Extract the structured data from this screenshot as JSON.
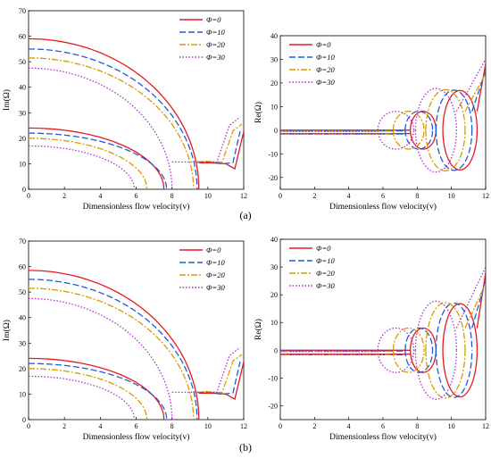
{
  "figure": {
    "panel_labels": [
      "(a)",
      "(b)"
    ]
  },
  "chart_data": [
    {
      "id": "a-left",
      "type": "line",
      "xlabel": "Dimensionless flow velocity(v)",
      "ylabel": "Im(Ω)",
      "xlim": [
        0,
        12
      ],
      "ylim": [
        0,
        70
      ],
      "xticks": [
        0,
        2,
        4,
        6,
        8,
        10,
        12
      ],
      "yticks": [
        0,
        10,
        20,
        30,
        40,
        50,
        60,
        70
      ],
      "legend": "top-right",
      "grid": false,
      "series": [
        {
          "name": "Φ=0",
          "color": "#e8191e",
          "dash": "solid",
          "upper": {
            "y0": 59,
            "xc": 9.5
          },
          "lower": {
            "y0": 24,
            "xc": 7.55
          },
          "right": [
            [
              9.5,
              10.4
            ],
            [
              10.2,
              10.4
            ],
            [
              11.0,
              10.0
            ],
            [
              11.5,
              8.0
            ],
            [
              12.0,
              22.6
            ]
          ]
        },
        {
          "name": "Φ=10",
          "color": "#1f5bd8",
          "dash": "7,3",
          "upper": {
            "y0": 55,
            "xc": 9.4
          },
          "lower": {
            "y0": 22,
            "xc": 7.7
          },
          "right": [
            [
              9.4,
              10.6
            ],
            [
              10.0,
              10.8
            ],
            [
              10.8,
              9.9
            ],
            [
              11.4,
              10.5
            ],
            [
              11.8,
              22.8
            ]
          ]
        },
        {
          "name": "Φ=20",
          "color": "#d99a00",
          "dash": "7,2,2,2",
          "upper": {
            "y0": 51.5,
            "xc": 9.2
          },
          "lower": {
            "y0": 20,
            "xc": 6.6
          },
          "right": [
            [
              9.2,
              10.7
            ],
            [
              9.9,
              11.0
            ],
            [
              10.8,
              10.6
            ],
            [
              11.4,
              23
            ],
            [
              11.9,
              25.5
            ]
          ]
        },
        {
          "name": "Φ=30",
          "color": "#b02bd0",
          "dash": "1.5,2",
          "upper": {
            "y0": 47.5,
            "xc": 8.0
          },
          "lower": {
            "y0": 17,
            "xc": 5.9
          },
          "right": [
            [
              8.0,
              10.7
            ],
            [
              9.0,
              10.7
            ],
            [
              10.5,
              10.7
            ],
            [
              11.2,
              25
            ],
            [
              11.8,
              28.3
            ]
          ]
        }
      ]
    },
    {
      "id": "a-right",
      "type": "line",
      "xlabel": "Dimensionless flow velocity(v)",
      "ylabel": "Re(Ω)",
      "xlim": [
        0,
        12
      ],
      "ylim": [
        -25,
        40
      ],
      "xticks": [
        0,
        2,
        4,
        6,
        8,
        10,
        12
      ],
      "yticks": [
        -20,
        -10,
        0,
        10,
        20,
        30,
        40
      ],
      "legend": "top-left",
      "grid": false,
      "series": [
        {
          "name": "Φ=0",
          "color": "#e8191e",
          "dash": "solid",
          "base": [
            -1.4,
            0.0
          ],
          "split": 7.6,
          "loop": [
            7.6,
            9.1,
            8.0
          ],
          "big": [
            9.5,
            11.5,
            16.8
          ],
          "tail": [
            12.0,
            28.0
          ]
        },
        {
          "name": "Φ=10",
          "color": "#1f5bd8",
          "dash": "7,3",
          "base": [
            -1.6,
            -0.3
          ],
          "split": 7.3,
          "loop": [
            7.3,
            8.9,
            8.0
          ],
          "big": [
            9.1,
            11.2,
            17.0
          ],
          "tail": [
            12.0,
            25.0
          ]
        },
        {
          "name": "Φ=20",
          "color": "#d99a00",
          "dash": "7,2,2,2",
          "base": [
            -1.6,
            -0.4
          ],
          "split": 6.6,
          "loop": [
            6.6,
            8.4,
            8.0
          ],
          "big": [
            8.5,
            10.8,
            17.2
          ],
          "tail": [
            12.0,
            24.0
          ]
        },
        {
          "name": "Φ=30",
          "color": "#b02bd0",
          "dash": "1.5,2",
          "base": [
            -1.6,
            -0.5
          ],
          "split": 5.7,
          "loop": [
            5.7,
            7.8,
            8.0
          ],
          "big": [
            7.9,
            10.3,
            17.7
          ],
          "tail": [
            12.0,
            30.0
          ]
        }
      ]
    },
    {
      "id": "b-left",
      "type": "line",
      "xlabel": "Dimensionless flow velocity(v)",
      "ylabel": "Im(Ω)",
      "xlim": [
        0,
        12
      ],
      "ylim": [
        0,
        70
      ],
      "xticks": [
        0,
        2,
        4,
        6,
        8,
        10,
        12
      ],
      "yticks": [
        0,
        10,
        20,
        30,
        40,
        50,
        60,
        70
      ],
      "legend": "top-right",
      "grid": false,
      "series": [
        {
          "name": "Φ=0",
          "color": "#e8191e",
          "dash": "solid",
          "upper": {
            "y0": 58.5,
            "xc": 9.5
          },
          "lower": {
            "y0": 24,
            "xc": 7.55
          },
          "right": [
            [
              9.5,
              10.4
            ],
            [
              10.2,
              10.4
            ],
            [
              11.0,
              10.0
            ],
            [
              11.5,
              8.0
            ],
            [
              12.0,
              22.6
            ]
          ]
        },
        {
          "name": "Φ=10",
          "color": "#1f5bd8",
          "dash": "7,3",
          "upper": {
            "y0": 55,
            "xc": 9.4
          },
          "lower": {
            "y0": 22,
            "xc": 7.7
          },
          "right": [
            [
              9.4,
              10.6
            ],
            [
              10.0,
              10.8
            ],
            [
              10.8,
              9.9
            ],
            [
              11.4,
              10.5
            ],
            [
              11.8,
              22.8
            ]
          ]
        },
        {
          "name": "Φ=20",
          "color": "#d99a00",
          "dash": "7,2,2,2",
          "upper": {
            "y0": 51.5,
            "xc": 9.2
          },
          "lower": {
            "y0": 20,
            "xc": 6.6
          },
          "right": [
            [
              9.2,
              10.7
            ],
            [
              9.9,
              11.0
            ],
            [
              10.8,
              10.6
            ],
            [
              11.4,
              23
            ],
            [
              11.9,
              25.5
            ]
          ]
        },
        {
          "name": "Φ=30",
          "color": "#b02bd0",
          "dash": "1.5,2",
          "upper": {
            "y0": 47.5,
            "xc": 8.0
          },
          "lower": {
            "y0": 17,
            "xc": 5.9
          },
          "right": [
            [
              8.0,
              10.7
            ],
            [
              9.0,
              10.7
            ],
            [
              10.5,
              10.7
            ],
            [
              11.2,
              25
            ],
            [
              11.8,
              28.3
            ]
          ]
        }
      ]
    },
    {
      "id": "b-right",
      "type": "line",
      "xlabel": "Dimensionless flow velocity(v)",
      "ylabel": "Re(Ω)",
      "xlim": [
        0,
        12
      ],
      "ylim": [
        -25,
        40
      ],
      "xticks": [
        0,
        2,
        4,
        6,
        8,
        10,
        12
      ],
      "yticks": [
        -20,
        -10,
        0,
        10,
        20,
        30,
        40
      ],
      "legend": "top-left",
      "grid": false,
      "series": [
        {
          "name": "Φ=0",
          "color": "#e8191e",
          "dash": "solid",
          "base": [
            -1.4,
            0.0
          ],
          "split": 7.6,
          "loop": [
            7.6,
            9.1,
            8.0
          ],
          "big": [
            9.5,
            11.5,
            16.8
          ],
          "tail": [
            12.0,
            28.0
          ]
        },
        {
          "name": "Φ=10",
          "color": "#1f5bd8",
          "dash": "7,3",
          "base": [
            -1.6,
            -0.3
          ],
          "split": 7.3,
          "loop": [
            7.3,
            8.9,
            8.0
          ],
          "big": [
            9.1,
            11.2,
            17.0
          ],
          "tail": [
            12.0,
            25.0
          ]
        },
        {
          "name": "Φ=20",
          "color": "#d99a00",
          "dash": "7,2,2,2",
          "base": [
            -1.6,
            -0.4
          ],
          "split": 6.6,
          "loop": [
            6.6,
            8.4,
            8.0
          ],
          "big": [
            8.5,
            10.8,
            17.2
          ],
          "tail": [
            12.0,
            24.0
          ]
        },
        {
          "name": "Φ=30",
          "color": "#b02bd0",
          "dash": "1.5,2",
          "base": [
            -1.6,
            -0.5
          ],
          "split": 5.7,
          "loop": [
            5.7,
            7.8,
            8.0
          ],
          "big": [
            7.9,
            10.3,
            17.7
          ],
          "tail": [
            12.0,
            30.0
          ]
        }
      ]
    }
  ]
}
